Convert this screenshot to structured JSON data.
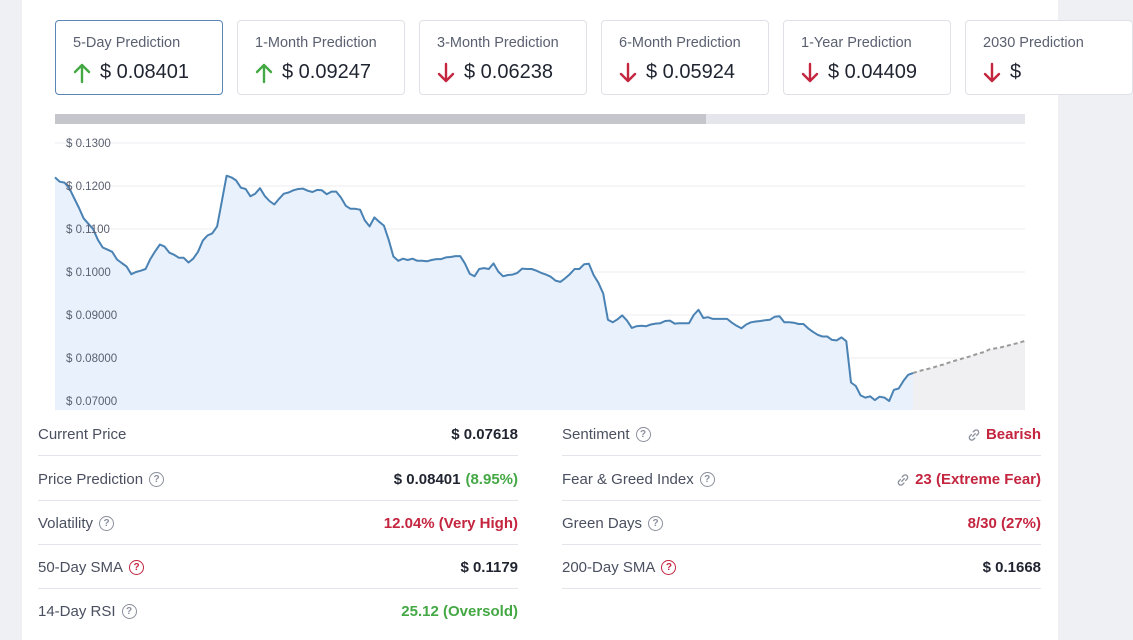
{
  "tabs": [
    {
      "label": "5-Day Prediction",
      "value": "$ 0.08401",
      "direction": "up"
    },
    {
      "label": "1-Month Prediction",
      "value": "$ 0.09247",
      "direction": "up"
    },
    {
      "label": "3-Month Prediction",
      "value": "$ 0.06238",
      "direction": "down"
    },
    {
      "label": "6-Month Prediction",
      "value": "$ 0.05924",
      "direction": "down"
    },
    {
      "label": "1-Year Prediction",
      "value": "$ 0.04409",
      "direction": "down"
    },
    {
      "label": "2030 Prediction",
      "value": "$ ",
      "direction": "down"
    }
  ],
  "colors": {
    "up": "#44a844",
    "down": "#c4253f",
    "line": "#4a82b4",
    "forecast": "#9a9a9a"
  },
  "chart_data": {
    "type": "line",
    "y_ticks": [
      "$ 0.1300",
      "$ 0.1200",
      "$ 0.1100",
      "$ 0.1000",
      "$ 0.09000",
      "$ 0.08000",
      "$ 0.07000"
    ],
    "ylim": [
      0.0685,
      0.13
    ],
    "grid": true,
    "series": [
      {
        "values": [
          0.122,
          0.121,
          0.1208,
          0.1195,
          0.1172,
          0.115,
          0.1125,
          0.1112,
          0.11,
          0.1075,
          0.1057,
          0.1052,
          0.1047,
          0.1029,
          0.1021,
          0.1013,
          0.0995,
          0.1,
          0.1003,
          0.1007,
          0.103,
          0.1048,
          0.1064,
          0.1059,
          0.1045,
          0.104,
          0.1033,
          0.1033,
          0.1022,
          0.1031,
          0.1047,
          0.1073,
          0.1085,
          0.109,
          0.1106,
          0.1164,
          0.1224,
          0.122,
          0.1213,
          0.1196,
          0.1193,
          0.1176,
          0.1182,
          0.1195,
          0.1177,
          0.1165,
          0.1157,
          0.117,
          0.1182,
          0.1185,
          0.119,
          0.1193,
          0.1194,
          0.1189,
          0.1186,
          0.1191,
          0.119,
          0.1181,
          0.1187,
          0.1187,
          0.1173,
          0.1154,
          0.1147,
          0.1147,
          0.1145,
          0.112,
          0.1106,
          0.1127,
          0.1117,
          0.1108,
          0.1075,
          0.1036,
          0.1026,
          0.1031,
          0.1028,
          0.1031,
          0.1026,
          0.1026,
          0.1025,
          0.1028,
          0.103,
          0.103,
          0.1034,
          0.1035,
          0.1037,
          0.1037,
          0.102,
          0.0996,
          0.099,
          0.1007,
          0.1009,
          0.1007,
          0.102,
          0.1001,
          0.099,
          0.0993,
          0.0994,
          0.0998,
          0.1008,
          0.1007,
          0.1007,
          0.1003,
          0.0998,
          0.0994,
          0.0989,
          0.098,
          0.0977,
          0.0985,
          0.0995,
          0.1007,
          0.1007,
          0.1018,
          0.1019,
          0.0993,
          0.0975,
          0.095,
          0.0889,
          0.0883,
          0.089,
          0.0899,
          0.0887,
          0.087,
          0.0874,
          0.0875,
          0.0874,
          0.0878,
          0.088,
          0.0881,
          0.0886,
          0.0887,
          0.088,
          0.0881,
          0.0881,
          0.0881,
          0.09,
          0.0912,
          0.0893,
          0.0895,
          0.0891,
          0.0891,
          0.0891,
          0.0891,
          0.0882,
          0.0875,
          0.0869,
          0.0878,
          0.0883,
          0.0885,
          0.0886,
          0.0888,
          0.0889,
          0.0896,
          0.0897,
          0.0883,
          0.0883,
          0.0882,
          0.0879,
          0.0879,
          0.0869,
          0.0861,
          0.0854,
          0.085,
          0.085,
          0.0842,
          0.0841,
          0.0848,
          0.0839,
          0.0743,
          0.0735,
          0.0713,
          0.0708,
          0.0711,
          0.0702,
          0.071,
          0.0708,
          0.07,
          0.0726,
          0.0729,
          0.0747,
          0.0761,
          0.0765
        ]
      },
      {
        "values": [
          0.0765,
          0.0769,
          0.0772,
          0.0775,
          0.0778,
          0.0782,
          0.0785,
          0.0789,
          0.0793,
          0.0796,
          0.08,
          0.0803,
          0.0807,
          0.0811,
          0.0814,
          0.082,
          0.0822,
          0.0824,
          0.0827,
          0.083,
          0.0833,
          0.0836,
          0.084
        ]
      }
    ]
  },
  "stats_left": [
    {
      "label": "Current Price",
      "value": "$ 0.07618",
      "help": false
    },
    {
      "label": "Price Prediction",
      "value": "$ 0.08401",
      "value_extra": "(8.95%)",
      "help": true
    },
    {
      "label": "Volatility",
      "value": "12.04% (Very High)",
      "help": true
    },
    {
      "label": "50-Day SMA",
      "value": "$ 0.1179",
      "help": true
    },
    {
      "label": "14-Day RSI",
      "value": "25.12 (Oversold)",
      "help": true
    }
  ],
  "stats_right": [
    {
      "label": "Sentiment",
      "value": "Bearish",
      "help": true
    },
    {
      "label": "Fear & Greed Index",
      "value": "23 (Extreme Fear)",
      "help": true
    },
    {
      "label": "Green Days",
      "value": "8/30 (27%)",
      "help": true
    },
    {
      "label": "200-Day SMA",
      "value": "$ 0.1668",
      "help": true
    }
  ],
  "help_glyph": "?"
}
